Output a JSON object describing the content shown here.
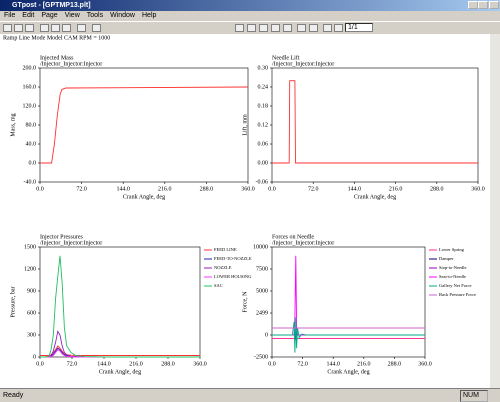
{
  "window": {
    "title": "GTpost - [GPTMP13.plt]"
  },
  "menu": [
    "File",
    "Edit",
    "Page",
    "View",
    "Tools",
    "Window",
    "Help"
  ],
  "toolbar": {
    "page": "1/1"
  },
  "page_header": "Ramp Line Mode Model CAM RPM = 1000",
  "status": {
    "left": "Ready",
    "right": "NUM"
  },
  "chart_data": [
    {
      "type": "line",
      "title": "Injected Mass",
      "subtitle": "/Injector_Injector:Injector",
      "x_label": "Crank Angle, deg",
      "y_label": "Mass, mg",
      "x": [
        0,
        20,
        25,
        30,
        35,
        38,
        45,
        360
      ],
      "series": [
        {
          "color": "#ff3030",
          "values": [
            0,
            0,
            40,
            100,
            145,
            155,
            158,
            160
          ]
        }
      ],
      "xlim": [
        0,
        360
      ],
      "ylim": [
        -40,
        200
      ],
      "xticks": [
        {
          "value": 0,
          "label": "0.0"
        },
        {
          "value": 72,
          "label": "72.0"
        },
        {
          "value": 144,
          "label": "144.0"
        },
        {
          "value": 216,
          "label": "216.0"
        },
        {
          "value": 288,
          "label": "288.0"
        },
        {
          "value": 360,
          "label": "360.0"
        }
      ],
      "yticks": [
        {
          "value": -40,
          "label": "-40.0"
        },
        {
          "value": 0,
          "label": "0.0"
        },
        {
          "value": 40,
          "label": "40.0"
        },
        {
          "value": 80,
          "label": "80.0"
        },
        {
          "value": 120,
          "label": "120.0"
        },
        {
          "value": 160,
          "label": "160.0"
        },
        {
          "value": 200,
          "label": "200.0"
        }
      ]
    },
    {
      "type": "line",
      "title": "Needle Lift",
      "subtitle": "/Injector_Injector:Injector",
      "x_label": "Crank Angle, deg",
      "y_label": "Lift, mm",
      "x": [
        0,
        30,
        31,
        32,
        40,
        41,
        360
      ],
      "series": [
        {
          "color": "#ff3030",
          "values": [
            0,
            0,
            0.26,
            0.26,
            0.26,
            0,
            0
          ]
        }
      ],
      "xlim": [
        0,
        360
      ],
      "ylim": [
        -0.06,
        0.3
      ],
      "xticks": [
        {
          "value": 0,
          "label": "0.0"
        },
        {
          "value": 72,
          "label": "72.0"
        },
        {
          "value": 144,
          "label": "144.0"
        },
        {
          "value": 216,
          "label": "216.0"
        },
        {
          "value": 288,
          "label": "288.0"
        },
        {
          "value": 360,
          "label": "360.0"
        }
      ],
      "yticks": [
        {
          "value": -0.06,
          "label": "-0.06"
        },
        {
          "value": 0,
          "label": "0.00"
        },
        {
          "value": 0.06,
          "label": "0.06"
        },
        {
          "value": 0.12,
          "label": "0.12"
        },
        {
          "value": 0.18,
          "label": "0.18"
        },
        {
          "value": 0.24,
          "label": "0.24"
        },
        {
          "value": 0.3,
          "label": "0.30"
        }
      ]
    },
    {
      "type": "line",
      "title": "Injector Pressures",
      "subtitle": "/Injector_Injector:Injector",
      "x_label": "Crank Angle, deg",
      "y_label": "Pressure, bar",
      "x": [
        0,
        10,
        20,
        25,
        30,
        35,
        40,
        45,
        50,
        55,
        60,
        70,
        80,
        100,
        150,
        200,
        250,
        300,
        360
      ],
      "series": [
        {
          "name": "FEED LINE",
          "color": "#ff3030",
          "values": [
            20,
            20,
            20,
            30,
            60,
            100,
            150,
            120,
            80,
            40,
            30,
            25,
            20,
            20,
            20,
            20,
            20,
            20,
            20
          ]
        },
        {
          "name": "FEED-TO-NOZZLE",
          "color": "#2020c0",
          "values": [
            0,
            0,
            0,
            10,
            40,
            80,
            120,
            100,
            60,
            30,
            20,
            10,
            5,
            0,
            0,
            0,
            0,
            0,
            0
          ]
        },
        {
          "name": "NOZZLE",
          "color": "#9020c0",
          "values": [
            0,
            0,
            0,
            20,
            80,
            200,
            350,
            300,
            150,
            60,
            30,
            10,
            5,
            0,
            0,
            0,
            0,
            0,
            0
          ]
        },
        {
          "name": "LOWER HOUSING",
          "color": "#ff30ff",
          "values": [
            0,
            0,
            0,
            5,
            20,
            60,
            100,
            80,
            40,
            20,
            10,
            5,
            0,
            0,
            0,
            0,
            0,
            0,
            0
          ]
        },
        {
          "name": "SAC",
          "color": "#20c060",
          "values": [
            0,
            0,
            10,
            100,
            300,
            800,
            1100,
            1380,
            1000,
            400,
            150,
            60,
            20,
            5,
            0,
            0,
            0,
            0,
            0
          ]
        }
      ],
      "xlim": [
        0,
        360
      ],
      "ylim": [
        0,
        1500
      ],
      "xticks": [
        {
          "value": 0,
          "label": "0.0"
        },
        {
          "value": 72,
          "label": "72.0"
        },
        {
          "value": 144,
          "label": "144.0"
        },
        {
          "value": 216,
          "label": "216.0"
        },
        {
          "value": 288,
          "label": "288.0"
        },
        {
          "value": 360,
          "label": "360.0"
        }
      ],
      "yticks": [
        0,
        300,
        600,
        900,
        1200,
        1500
      ]
    },
    {
      "type": "line",
      "title": "Forces on Needle",
      "subtitle": "/Injector_Injector:Injector",
      "x_label": "Crank Angle, deg",
      "y_label": "Force, N",
      "x": [
        0,
        40,
        48,
        52,
        54,
        56,
        58,
        60,
        64,
        70,
        80,
        100,
        200,
        360
      ],
      "series": [
        {
          "name": "Lower Spring",
          "color": "#ff3399",
          "values": [
            -400,
            -400,
            -400,
            -400,
            -400,
            -400,
            -400,
            -400,
            -400,
            -400,
            -400,
            -400,
            -400,
            -400
          ]
        },
        {
          "name": "Damper",
          "color": "#000080",
          "values": [
            0,
            0,
            0,
            0,
            300,
            -500,
            200,
            0,
            0,
            0,
            0,
            0,
            0,
            0
          ]
        },
        {
          "name": "Stop-to-Needle",
          "color": "#9900cc",
          "values": [
            0,
            0,
            0,
            0,
            0,
            0,
            0,
            0,
            0,
            0,
            0,
            0,
            0,
            0
          ]
        },
        {
          "name": "Seat-to-Needle",
          "color": "#ff00ff",
          "values": [
            0,
            0,
            0,
            0,
            2000,
            9000,
            1000,
            0,
            0,
            0,
            0,
            0,
            0,
            0
          ]
        },
        {
          "name": "Gallery Net Force",
          "color": "#00aa88",
          "values": [
            0,
            0,
            0,
            1500,
            -2000,
            2000,
            -1500,
            800,
            -300,
            100,
            0,
            0,
            0,
            0
          ]
        },
        {
          "name": "Back Pressure Force",
          "color": "#cc66cc",
          "values": [
            800,
            800,
            800,
            800,
            800,
            800,
            800,
            800,
            800,
            800,
            800,
            800,
            800,
            800
          ]
        }
      ],
      "xlim": [
        0,
        360
      ],
      "ylim": [
        -2500,
        10000
      ],
      "xticks": [
        {
          "value": 0,
          "label": "0.0"
        },
        {
          "value": 72,
          "label": "72.0"
        },
        {
          "value": 144,
          "label": "144.0"
        },
        {
          "value": 216,
          "label": "216.0"
        },
        {
          "value": 288,
          "label": "288.0"
        },
        {
          "value": 360,
          "label": "360.0"
        }
      ],
      "yticks": [
        -2500,
        0,
        2499,
        5000,
        7500,
        10000
      ]
    }
  ]
}
